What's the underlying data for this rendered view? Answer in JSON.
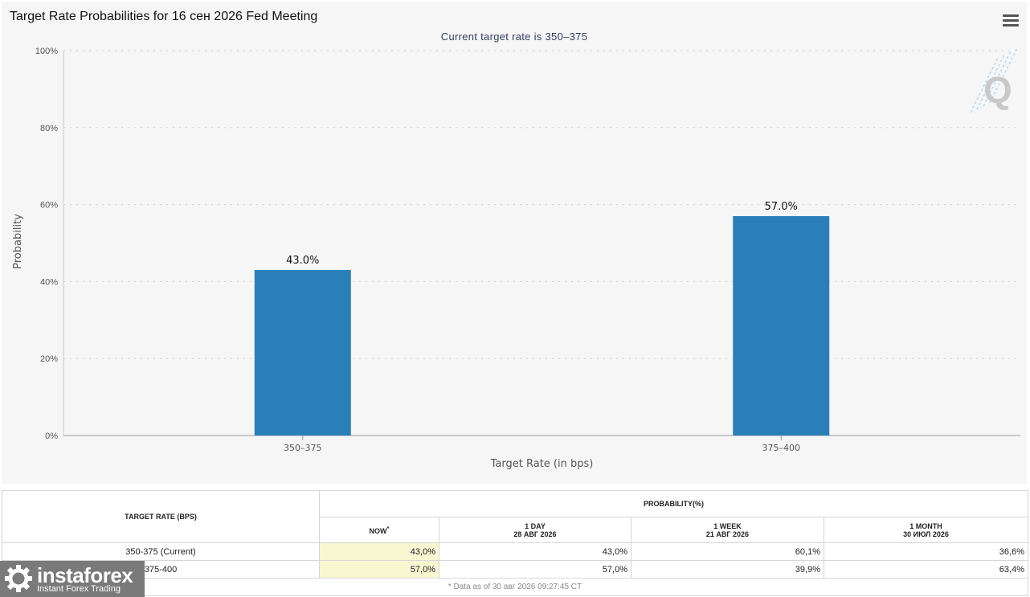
{
  "chart_title": "Target Rate Probabilities for 16 сен 2026 Fed Meeting",
  "chart_data": {
    "type": "bar",
    "title": "Target Rate Probabilities for 16 сен 2026 Fed Meeting",
    "subtitle": "Current target rate is 350–375",
    "categories": [
      "350–375",
      "375–400"
    ],
    "values": [
      43.0,
      57.0
    ],
    "value_labels": [
      "43.0%",
      "57.0%"
    ],
    "xlabel": "Target Rate (in bps)",
    "ylabel": "Probability",
    "ylim": [
      0,
      100
    ],
    "yticks": [
      0,
      20,
      40,
      60,
      80,
      100
    ],
    "ytick_labels": [
      "0%",
      "20%",
      "40%",
      "60%",
      "80%",
      "100%"
    ],
    "grid": true,
    "bar_color": "#2b7fb8"
  },
  "table": {
    "header_rate": "TARGET RATE (BPS)",
    "header_prob": "PROBABILITY(%)",
    "col_now": "NOW",
    "col_now_mark": "*",
    "col_1day": "1 DAY",
    "col_1day_date": "28 АВГ 2026",
    "col_1week": "1 WEEK",
    "col_1week_date": "21 АВГ 2026",
    "col_1month": "1 MONTH",
    "col_1month_date": "30 ИЮЛ 2026",
    "rows": [
      {
        "rate": "350-375 (Current)",
        "now": "43,0%",
        "day": "43,0%",
        "week": "60,1%",
        "month": "36,6%"
      },
      {
        "rate": "375-400",
        "now": "57,0%",
        "day": "57,0%",
        "week": "39,9%",
        "month": "63,4%"
      }
    ],
    "footnote": "* Data as of 30 авг 2026 09:27:45 CT"
  },
  "logo": {
    "name": "instaforex",
    "tagline": "Instant Forex Trading"
  },
  "watermark": "Q"
}
